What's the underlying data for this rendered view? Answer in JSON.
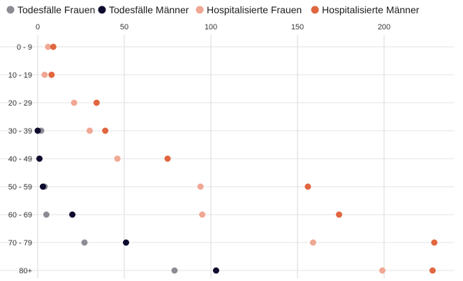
{
  "chart_data": {
    "type": "scatter",
    "title": "",
    "xlabel": "",
    "ylabel": "",
    "xlim": [
      0,
      230
    ],
    "x_ticks": [
      0,
      50,
      100,
      150,
      200
    ],
    "grid": "vertical",
    "legend_position": "top",
    "categories": [
      "0 - 9",
      "10 - 19",
      "20 - 29",
      "30 - 39",
      "40 - 49",
      "50 - 59",
      "60 - 69",
      "70 - 79",
      "80+"
    ],
    "series": [
      {
        "name": "Todesfälle Frauen",
        "color": "#8c8c96",
        "values": [
          null,
          null,
          null,
          2,
          null,
          4,
          5,
          27,
          79
        ]
      },
      {
        "name": "Todesfälle Männer",
        "color": "#0d0b2e",
        "values": [
          null,
          null,
          null,
          0,
          1,
          3,
          20,
          51,
          103
        ]
      },
      {
        "name": "Hospitalisierte Frauen",
        "color": "#f0a793",
        "values": [
          6,
          4,
          21,
          30,
          46,
          94,
          95,
          159,
          199
        ]
      },
      {
        "name": "Hospitalisierte Männer",
        "color": "#e0663f",
        "values": [
          9,
          8,
          34,
          39,
          75,
          156,
          174,
          229,
          228
        ]
      }
    ]
  }
}
